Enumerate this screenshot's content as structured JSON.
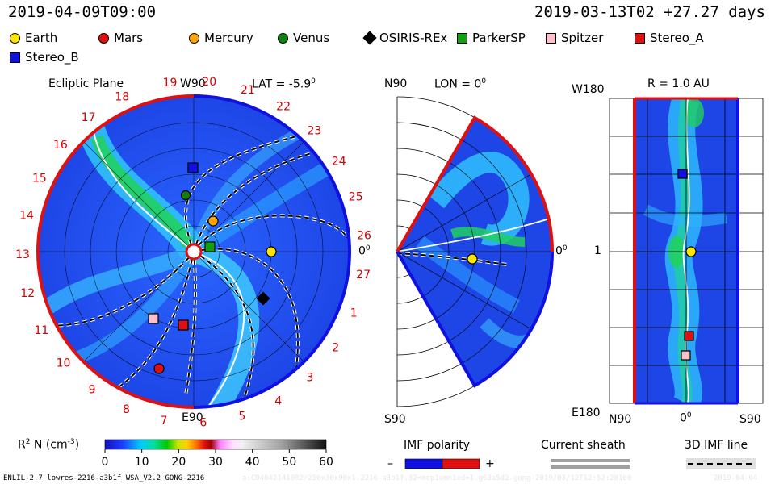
{
  "header": {
    "left_time": "2019-04-09T09:00",
    "right_time": "2019-03-13T02 +27.27 days"
  },
  "legend": [
    {
      "name": "Earth",
      "color": "#ffe600",
      "shape": "circle"
    },
    {
      "name": "Mars",
      "color": "#e01010",
      "shape": "circle"
    },
    {
      "name": "Mercury",
      "color": "#ffa500",
      "shape": "circle"
    },
    {
      "name": "Venus",
      "color": "#108010",
      "shape": "circle"
    },
    {
      "name": "OSIRIS-REx",
      "color": "#000000",
      "shape": "diamond"
    },
    {
      "name": "ParkerSP",
      "color": "#10a010",
      "shape": "square"
    },
    {
      "name": "Spitzer",
      "color": "#ffc0cb",
      "shape": "square"
    },
    {
      "name": "Stereo_A",
      "color": "#e01010",
      "shape": "square"
    },
    {
      "name": "Stereo_B",
      "color": "#1010e0",
      "shape": "square"
    }
  ],
  "panel1": {
    "title": "Ecliptic Plane",
    "lat": "LAT = -5.9",
    "deg": "0",
    "top": "W90",
    "bottom": "E90",
    "right": "0",
    "carrington": [
      "19",
      "20",
      "21",
      "22",
      "23",
      "24",
      "25",
      "26",
      "27",
      "1",
      "2",
      "3",
      "4",
      "5",
      "6",
      "7",
      "8",
      "9",
      "10",
      "11",
      "12",
      "13",
      "14",
      "15",
      "16",
      "17",
      "18"
    ]
  },
  "panel2": {
    "top": "N90",
    "lon": "LON = 0",
    "deg": "0",
    "bottom": "S90",
    "right": "0"
  },
  "panel3": {
    "top_left": "W180",
    "r": "R = 1.0 AU",
    "mid_left": "1",
    "bottom_left": "E180",
    "bottom_n": "N90",
    "bottom_zero": "0",
    "bottom_s": "S90",
    "deg": "0"
  },
  "colorbar": {
    "label": "R",
    "label_sup": "2",
    "label_tail": " N (cm",
    "label_unit_sup": "-3",
    "label_close": ")",
    "ticks": [
      "0",
      "10",
      "20",
      "30",
      "40",
      "50",
      "60"
    ],
    "ticks_min": 0,
    "ticks_max": 60
  },
  "imf_polarity": {
    "label": "IMF polarity",
    "minus": "–",
    "plus": "+"
  },
  "current_sheath": {
    "label": "Current sheath"
  },
  "imf_line": {
    "label": "3D IMF line"
  },
  "footer": {
    "text": "ENLIL-2.7 lowres-2216-a3b1f WSA_V2.2 GONG-2216",
    "faint": "a:CD40421410R2/256x30x90x1.2216-a3b1f.32=mcp1umn1ed=1.g63a5d2.gong-2019/03/12T12:52:20100",
    "date": "2019-04-04"
  }
}
